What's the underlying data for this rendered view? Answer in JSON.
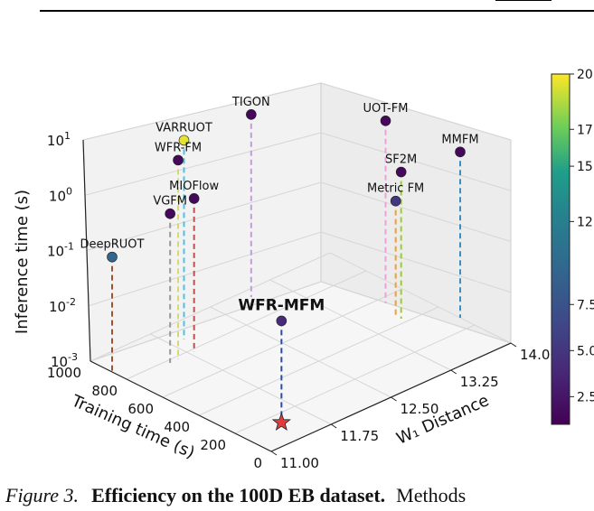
{
  "caption": {
    "label": "Figure 3.",
    "title": "Efficiency on the 100D EB dataset.",
    "rest": "Methods"
  },
  "chart_data": {
    "type": "scatter",
    "title": "",
    "xlabel": "W₁ Distance",
    "ylabel": "Training time (s)",
    "zlabel": "Inference time (s)",
    "z_scale": "log",
    "x_ticks": [
      "11.00",
      "11.75",
      "12.50",
      "13.25",
      "14.00"
    ],
    "y_ticks": [
      "0",
      "200",
      "400",
      "600",
      "800",
      "1000"
    ],
    "z_ticks": [
      "10",
      "10",
      "10",
      "10",
      "10"
    ],
    "z_tick_exps": [
      "-3",
      "-2",
      "-1",
      "0",
      "1"
    ],
    "colorbar_ticks": [
      "2.5",
      "5.0",
      "7.5",
      "12",
      "15",
      "17",
      "20"
    ],
    "colorbar_range": [
      1,
      20
    ],
    "highlight_method": "WFR-MFM",
    "points": [
      {
        "name": "VARRUOT",
        "w1": 11.9,
        "train": 880,
        "infer": 4.0,
        "color_value": 19.5,
        "drop": "#4fc3d9"
      },
      {
        "name": "TIGON",
        "w1": 12.9,
        "train": 950,
        "infer": 2.0,
        "color_value": 1.5,
        "drop": "#c49bdc"
      },
      {
        "name": "UOT-FM",
        "w1": 13.7,
        "train": 560,
        "infer": 2.0,
        "color_value": 1.5,
        "drop": "#f0a0d8"
      },
      {
        "name": "MMFM",
        "w1": 14.0,
        "train": 280,
        "infer": 1.0,
        "color_value": 1.5,
        "drop": "#3a8fc0"
      },
      {
        "name": "SF2M",
        "w1": 13.6,
        "train": 430,
        "infer": 0.45,
        "color_value": 1.5,
        "drop": "#9acd32"
      },
      {
        "name": "Metric FM",
        "w1": 13.6,
        "train": 460,
        "infer": 0.12,
        "color_value": 5.0,
        "drop": "#f0a030"
      },
      {
        "name": "WFR-FM",
        "w1": 11.6,
        "train": 780,
        "infer": 4.0,
        "color_value": 1.5,
        "drop": "#d8d870"
      },
      {
        "name": "VGFM",
        "w1": 11.5,
        "train": 780,
        "infer": 0.5,
        "color_value": 1.5,
        "drop": "#999999"
      },
      {
        "name": "MIOFlow",
        "w1": 11.8,
        "train": 780,
        "infer": 0.6,
        "color_value": 1.5,
        "drop": "#c0504d"
      },
      {
        "name": "DeepRUOT",
        "w1": 11.0,
        "train": 880,
        "infer": 0.12,
        "color_value": 9.5,
        "drop": "#a0522d"
      },
      {
        "name": "WFR-MFM",
        "w1": 11.4,
        "train": 120,
        "infer": 0.08,
        "color_value": 4.0,
        "drop": "#2a4ba8"
      }
    ]
  }
}
